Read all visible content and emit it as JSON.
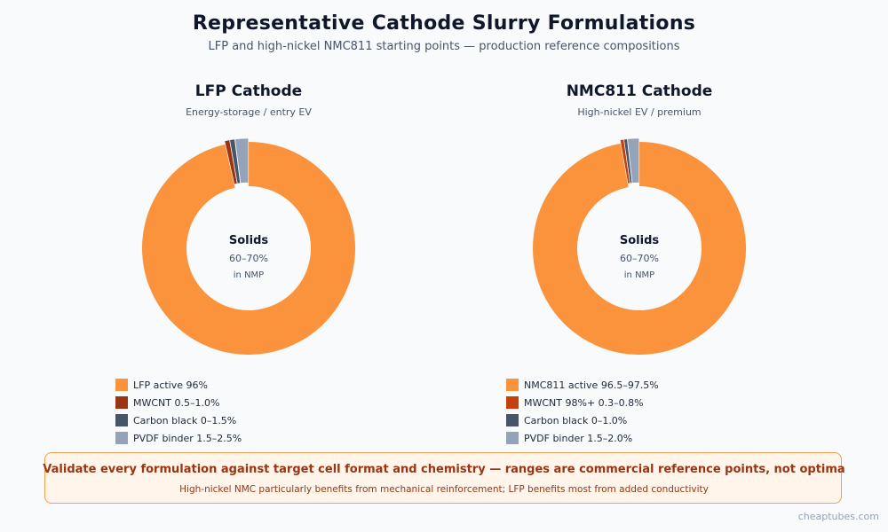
{
  "title": "Representative Cathode Slurry Formulations",
  "subtitle": "LFP and high-nickel NMC811 starting points — production reference compositions",
  "chart_data": [
    {
      "type": "pie",
      "title": "LFP Cathode",
      "subtitle": "Energy-storage / entry EV",
      "center": {
        "label": "Solids",
        "value": "60–70%",
        "note": "in NMP"
      },
      "slices": [
        {
          "label": "LFP active 96%",
          "value": 96.0,
          "color": "#fb923c"
        },
        {
          "label": "MWCNT 0.5–1.0%",
          "value": 0.75,
          "color": "#9a3412"
        },
        {
          "label": "Carbon black 0–1.5%",
          "value": 0.75,
          "color": "#475569"
        },
        {
          "label": "PVDF binder 1.5–2.5%",
          "value": 2.0,
          "color": "#94a3b8"
        }
      ]
    },
    {
      "type": "pie",
      "title": "NMC811 Cathode",
      "subtitle": "High-nickel EV / premium",
      "center": {
        "label": "Solids",
        "value": "60–70%",
        "note": "in NMP"
      },
      "slices": [
        {
          "label": "NMC811 active 96.5–97.5%",
          "value": 97.0,
          "color": "#fb923c"
        },
        {
          "label": "MWCNT 98%+ 0.3–0.8%",
          "value": 0.55,
          "color": "#c2410c"
        },
        {
          "label": "Carbon black 0–1.0%",
          "value": 0.5,
          "color": "#475569"
        },
        {
          "label": "PVDF binder 1.5–2.0%",
          "value": 1.75,
          "color": "#94a3b8"
        }
      ]
    }
  ],
  "note": {
    "title": "Validate every formulation against target cell format and chemistry — ranges are commercial reference points, not optima",
    "subtitle": "High-nickel NMC particularly benefits from mechanical reinforcement; LFP benefits most from added conductivity"
  },
  "footer": "cheaptubes.com"
}
